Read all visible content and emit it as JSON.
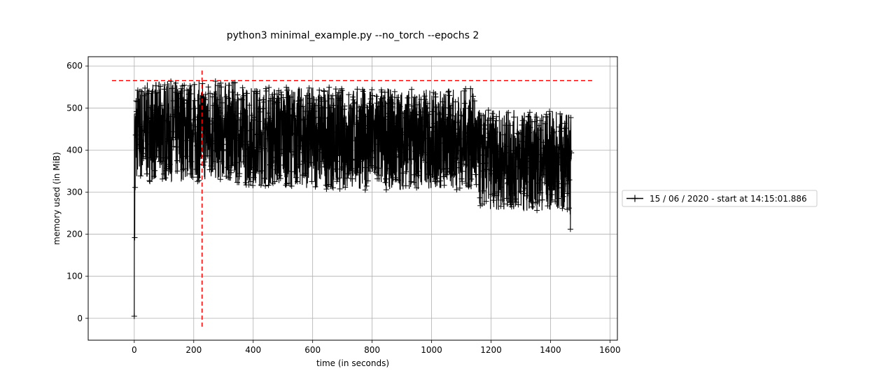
{
  "chart_data": {
    "type": "line",
    "title": "python3 minimal_example.py --no_torch --epochs 2",
    "xlabel": "time (in seconds)",
    "ylabel": "memory used (in MiB)",
    "xlim": [
      -155,
      1625
    ],
    "ylim": [
      -52,
      622
    ],
    "xticks": [
      0,
      200,
      400,
      600,
      800,
      1000,
      1200,
      1400,
      1600
    ],
    "yticks": [
      0,
      100,
      200,
      300,
      400,
      500,
      600
    ],
    "grid": true,
    "legend_position": "outside-right",
    "series": [
      {
        "name": "15 / 06 / 2020 - start at 14:15:01.886",
        "color": "#000000",
        "marker": "+",
        "style": "solid",
        "envelope": [
          {
            "x": 0,
            "y_min": 5,
            "y_max": 520
          },
          {
            "x": 5,
            "y_min": 325,
            "y_max": 560
          },
          {
            "x": 100,
            "y_min": 325,
            "y_max": 565
          },
          {
            "x": 200,
            "y_min": 325,
            "y_max": 565
          },
          {
            "x": 330,
            "y_min": 325,
            "y_max": 565
          },
          {
            "x": 355,
            "y_min": 315,
            "y_max": 555
          },
          {
            "x": 500,
            "y_min": 312,
            "y_max": 553
          },
          {
            "x": 700,
            "y_min": 305,
            "y_max": 550
          },
          {
            "x": 900,
            "y_min": 305,
            "y_max": 547
          },
          {
            "x": 1145,
            "y_min": 305,
            "y_max": 547
          },
          {
            "x": 1152,
            "y_min": 260,
            "y_max": 497
          },
          {
            "x": 1300,
            "y_min": 255,
            "y_max": 495
          },
          {
            "x": 1465,
            "y_min": 255,
            "y_max": 493
          },
          {
            "x": 1470,
            "y_min": 135,
            "y_max": 480
          }
        ]
      },
      {
        "name": "",
        "color": "#ff0000",
        "style": "dashed",
        "orientation": "horizontal",
        "y": 565,
        "x_range": [
          -75,
          1545
        ]
      },
      {
        "name": "",
        "color": "#ff0000",
        "style": "dashed",
        "orientation": "vertical",
        "x": 228,
        "y_range": [
          -20,
          595
        ]
      }
    ]
  }
}
